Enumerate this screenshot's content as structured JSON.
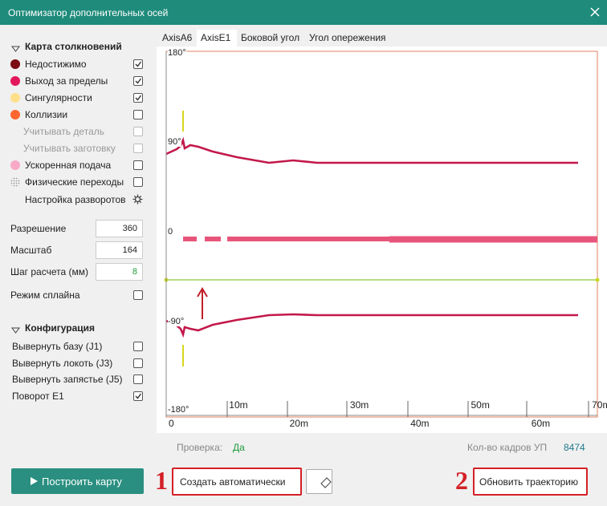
{
  "window": {
    "title": "Оптимизатор дополнительных осей"
  },
  "collision_map": {
    "title": "Карта столкновений",
    "items": [
      {
        "label": "Недостижимо",
        "color": "#7a0c12",
        "checked": true
      },
      {
        "label": "Выход за пределы",
        "color": "#e3175c",
        "checked": true
      },
      {
        "label": "Сингулярности",
        "color": "#ffe08a",
        "checked": true
      },
      {
        "label": "Коллизии",
        "color": "#ff6630",
        "checked": false
      },
      {
        "label": "Учитывать деталь",
        "checked": false,
        "disabled": true
      },
      {
        "label": "Учитывать заготовку",
        "checked": false,
        "disabled": true
      },
      {
        "label": "Ускоренная подача",
        "color": "#f7a9c6",
        "checked": false
      },
      {
        "label": "Физические переходы",
        "pattern": "dots",
        "checked": false
      }
    ],
    "rotation_settings": "Настройка разворотов"
  },
  "parameters": [
    {
      "label": "Разрешение",
      "value": 360
    },
    {
      "label": "Масштаб",
      "value": 164
    },
    {
      "label": "Шаг расчета (мм)",
      "value": 8,
      "color": "#1f9a3c"
    }
  ],
  "spline_mode": {
    "label": "Режим сплайна",
    "checked": false
  },
  "configuration": {
    "title": "Конфигурация",
    "items": [
      {
        "label": "Вывернуть базу (J1)",
        "checked": false
      },
      {
        "label": "Вывернуть локоть (J3)",
        "checked": false
      },
      {
        "label": "Вывернуть запястье (J5)",
        "checked": false
      },
      {
        "label": "Поворот E1",
        "checked": true
      }
    ]
  },
  "build_button": "Построить карту",
  "tabs": {
    "items": [
      "AxisA6",
      "AxisE1",
      "Боковой угол",
      "Угол опережения"
    ],
    "active": 1
  },
  "plot": {
    "y_labels": [
      "180°",
      "90°",
      "0",
      "-90°",
      "-180°"
    ],
    "x_labels": [
      "0",
      "10m",
      "20m",
      "30m",
      "40m",
      "50m",
      "60m",
      "70m"
    ]
  },
  "status": {
    "check_label": "Проверка:",
    "check_value": "Да",
    "frames_label": "Кол-во кадров УП",
    "frames_value": 8474
  },
  "actions": {
    "auto_create": "Создать автоматически",
    "update_trajectory": "Обновить траекторию",
    "markers": [
      1,
      2
    ]
  }
}
